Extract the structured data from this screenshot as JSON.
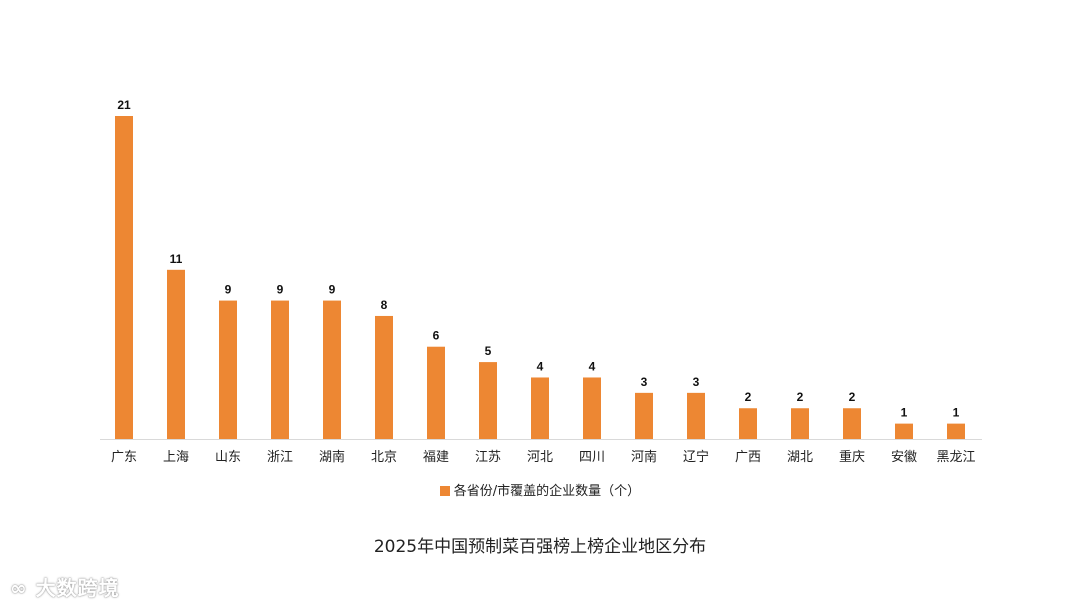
{
  "chart_data": {
    "type": "bar",
    "title": "2025年中国预制菜百强榜上榜企业地区分布",
    "xlabel": "",
    "ylabel": "",
    "categories": [
      "广东",
      "上海",
      "山东",
      "浙江",
      "湖南",
      "北京",
      "福建",
      "江苏",
      "河北",
      "四川",
      "河南",
      "辽宁",
      "广西",
      "湖北",
      "重庆",
      "安徽",
      "黑龙江"
    ],
    "series": [
      {
        "name": "各省份/市覆盖的企业数量（个）",
        "values": [
          21,
          11,
          9,
          9,
          9,
          8,
          6,
          5,
          4,
          4,
          3,
          3,
          2,
          2,
          2,
          1,
          1
        ],
        "color": "#ED8733"
      }
    ],
    "ylim": [
      0,
      21
    ],
    "grid": false,
    "data_labels": true,
    "legend_position": "bottom"
  },
  "watermark": "大数跨境"
}
